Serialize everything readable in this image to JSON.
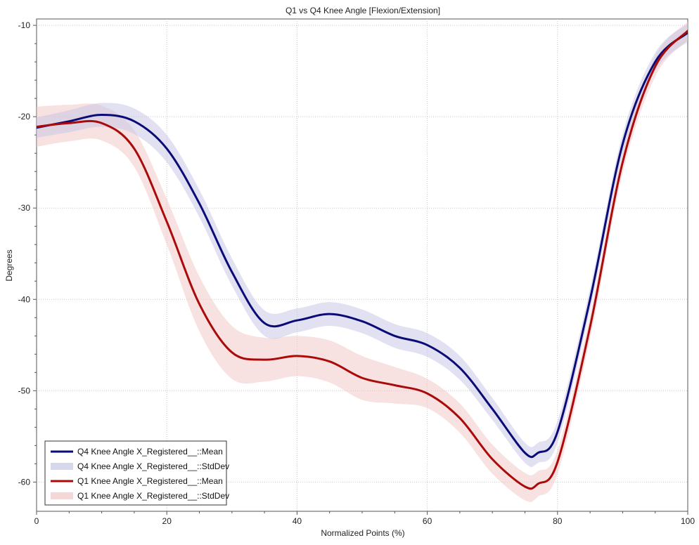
{
  "chart_data": {
    "type": "line",
    "title": "Q1 vs Q4 Knee Angle [Flexion/Extension]",
    "xlabel": "Normalized Points (%)",
    "ylabel": "Degrees",
    "xlim": [
      0,
      100
    ],
    "ylim": [
      -63.2,
      -9.3
    ],
    "xticks": [
      0,
      20,
      40,
      60,
      80,
      100
    ],
    "yticks": [
      -10,
      -20,
      -30,
      -40,
      -50,
      -60
    ],
    "x_tick_labels": [
      "0",
      "20",
      "40",
      "60",
      "80",
      "100"
    ],
    "y_tick_labels": [
      "-10",
      "-20",
      "-30",
      "-40",
      "-50",
      "-60"
    ],
    "grid": true,
    "grid_style": "dotted",
    "legend_position": "bottom-left",
    "x": [
      0,
      5,
      10,
      15,
      20,
      25,
      30,
      35,
      40,
      45,
      50,
      55,
      60,
      65,
      70,
      75,
      77,
      80,
      85,
      90,
      95,
      100
    ],
    "series": [
      {
        "name": "Q4 Knee Angle X_Registered__::Mean",
        "kind": "line",
        "color": "#0b0b78",
        "values": [
          -21.2,
          -20.5,
          -19.8,
          -20.5,
          -23.5,
          -29.5,
          -37.0,
          -42.6,
          -42.3,
          -41.6,
          -42.4,
          -44.0,
          -45.0,
          -47.5,
          -52.0,
          -56.8,
          -56.8,
          -54.5,
          -40.0,
          -23.0,
          -14.0,
          -10.8
        ]
      },
      {
        "name": "Q4 Knee Angle X_Registered__::StdDev",
        "kind": "band",
        "color": "#c8c8e6",
        "values": [
          1.1,
          1.2,
          1.3,
          1.4,
          1.5,
          1.5,
          1.5,
          1.4,
          1.3,
          1.3,
          1.3,
          1.3,
          1.3,
          1.3,
          1.2,
          1.1,
          1.1,
          1.2,
          1.2,
          1.1,
          1.0,
          1.0
        ]
      },
      {
        "name": "Q1 Knee Angle X_Registered__::Mean",
        "kind": "line",
        "color": "#aa0a0a",
        "values": [
          -21.1,
          -20.7,
          -20.7,
          -23.5,
          -31.5,
          -40.5,
          -45.8,
          -46.6,
          -46.2,
          -46.8,
          -48.6,
          -49.4,
          -50.3,
          -53.0,
          -57.5,
          -60.5,
          -60.2,
          -57.8,
          -43.0,
          -25.0,
          -14.5,
          -10.6
        ]
      },
      {
        "name": "Q1 Knee Angle X_Registered__::StdDev",
        "kind": "band",
        "color": "#f0c8c8",
        "values": [
          2.2,
          2.0,
          1.9,
          2.0,
          2.5,
          3.0,
          2.9,
          2.4,
          2.2,
          2.3,
          2.4,
          2.0,
          1.6,
          1.6,
          1.6,
          1.5,
          1.4,
          1.3,
          1.3,
          1.2,
          1.1,
          1.0
        ]
      }
    ]
  }
}
